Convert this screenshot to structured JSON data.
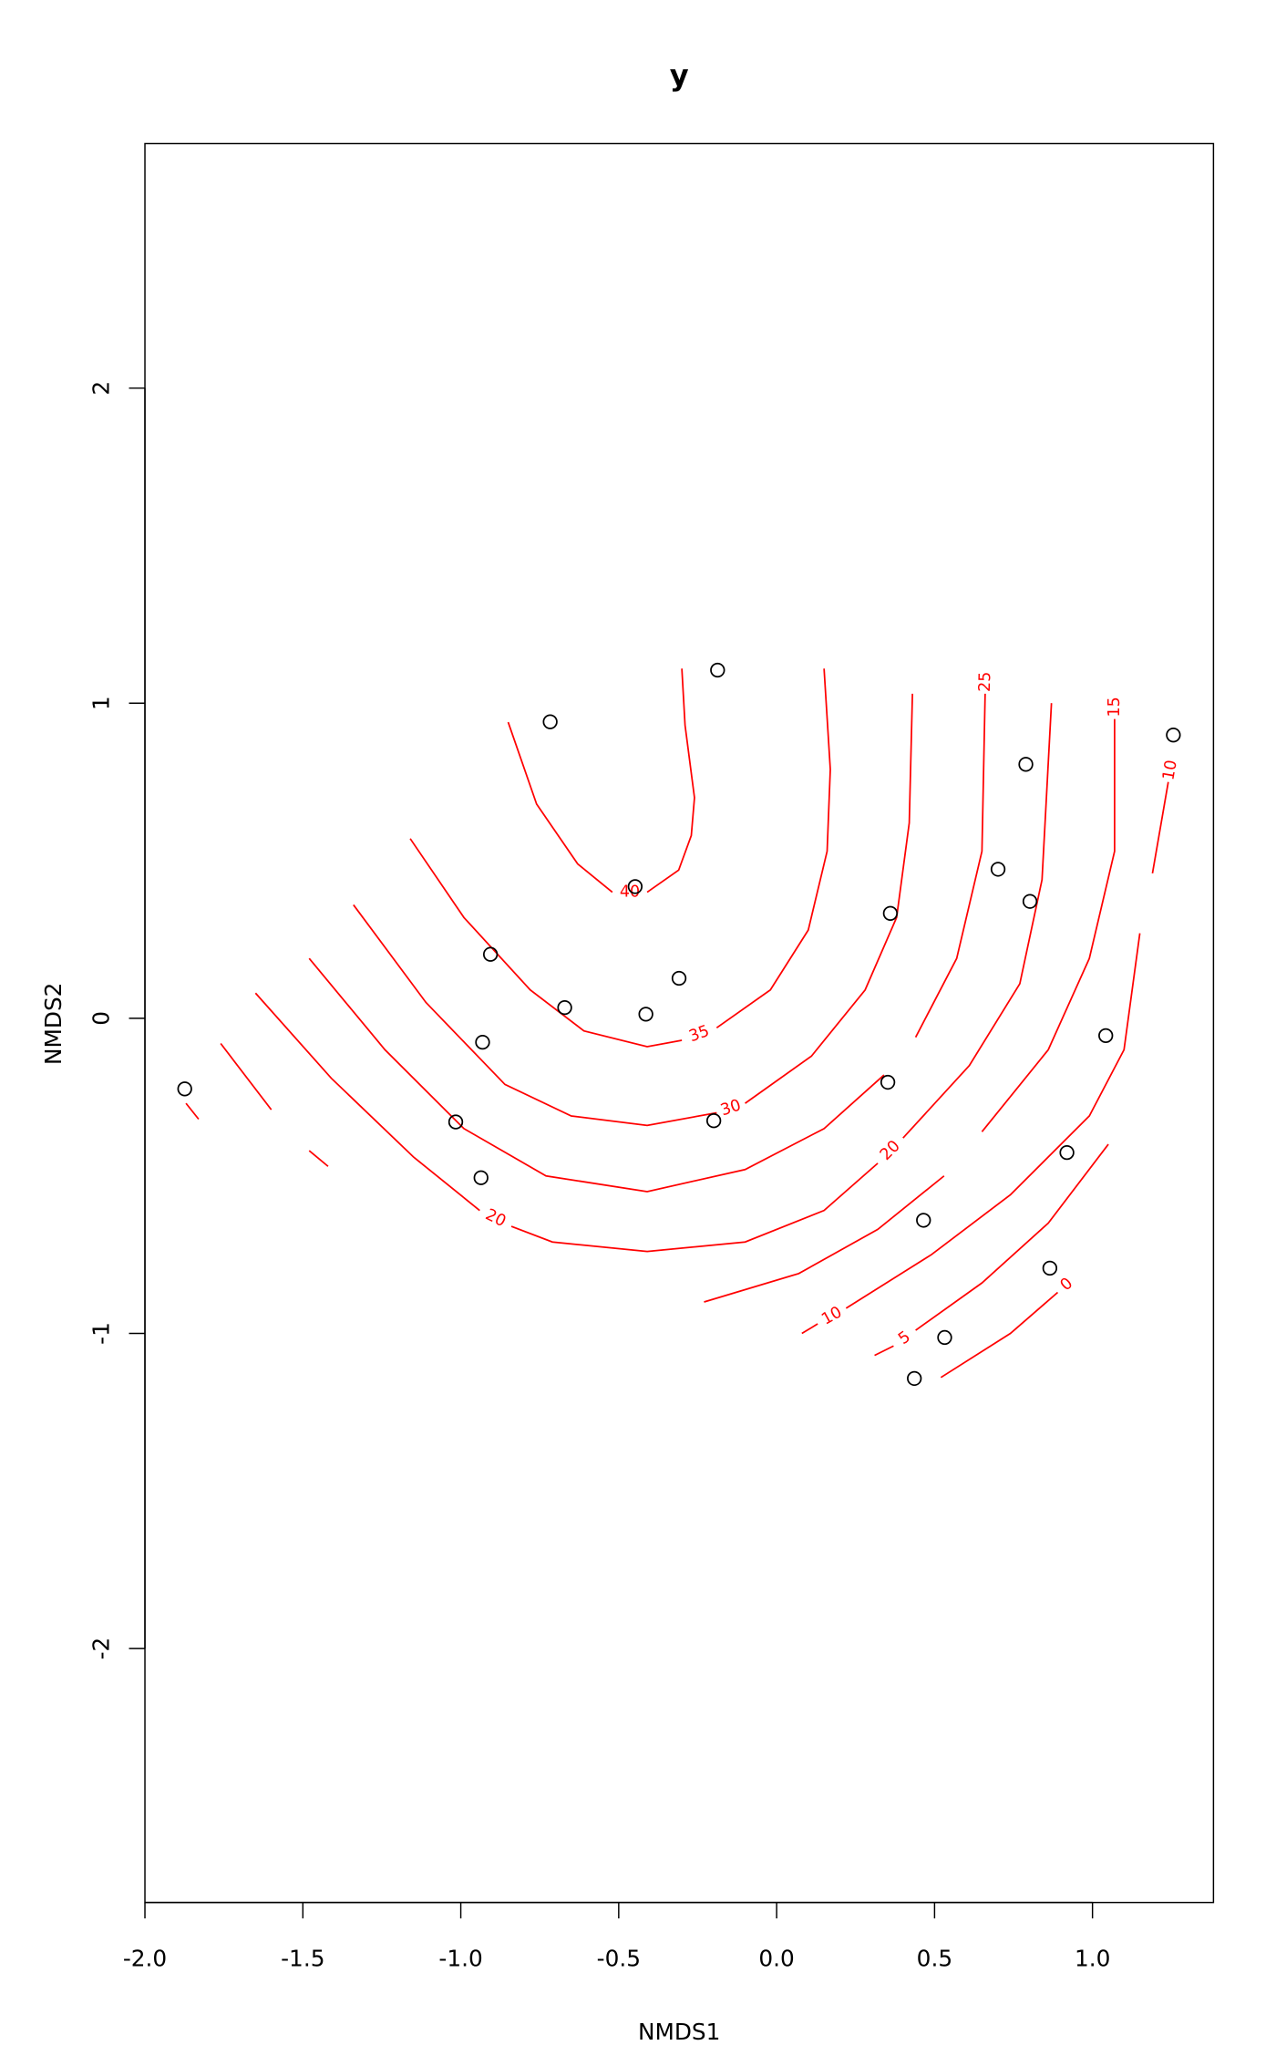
{
  "chart_data": {
    "type": "scatter",
    "title": "y",
    "xlabel": "NMDS1",
    "ylabel": "NMDS2",
    "x": [
      -1.874,
      -0.717,
      -0.187,
      -0.448,
      -0.906,
      -0.671,
      -0.414,
      -0.309,
      -0.931,
      -1.016,
      -0.936,
      -0.199,
      0.36,
      0.352,
      0.701,
      0.789,
      0.802,
      1.042,
      1.256,
      0.919,
      0.465,
      0.865,
      0.532,
      0.436
    ],
    "y": [
      -0.224,
      0.941,
      1.105,
      0.418,
      0.203,
      0.034,
      0.013,
      0.127,
      -0.076,
      -0.329,
      -0.506,
      -0.325,
      0.333,
      -0.203,
      0.473,
      0.806,
      0.371,
      -0.055,
      0.899,
      -0.426,
      -0.641,
      -0.793,
      -1.013,
      -1.143
    ],
    "point_color": "#000000",
    "contours": [
      {
        "level": 40,
        "color": "#ff0000",
        "x": [
          -0.85,
          -0.76,
          -0.63,
          -0.52,
          null,
          -0.41,
          -0.31,
          -0.27,
          -0.26,
          -0.29,
          -0.3
        ],
        "y": [
          0.94,
          0.68,
          0.49,
          0.4,
          null,
          0.4,
          0.47,
          0.58,
          0.7,
          0.93,
          1.11
        ]
      },
      {
        "level": 35,
        "color": "#ff0000",
        "x": [
          -1.16,
          -0.99,
          -0.78,
          -0.61,
          -0.41,
          -0.3,
          null,
          -0.19,
          -0.02,
          0.1,
          0.16,
          0.17,
          0.15
        ],
        "y": [
          0.57,
          0.32,
          0.09,
          -0.04,
          -0.09,
          -0.07,
          null,
          -0.03,
          0.09,
          0.28,
          0.53,
          0.79,
          1.11
        ]
      },
      {
        "level": 30,
        "color": "#ff0000",
        "x": [
          -1.34,
          -1.11,
          -0.86,
          -0.65,
          -0.41,
          -0.19,
          null,
          -0.1,
          0.11,
          0.28,
          0.38,
          0.42,
          0.43
        ],
        "y": [
          0.36,
          0.05,
          -0.21,
          -0.31,
          -0.34,
          -0.3,
          null,
          -0.27,
          -0.12,
          0.09,
          0.32,
          0.62,
          1.03
        ]
      },
      {
        "level": 25,
        "color": "#ff0000",
        "x": [
          -1.48,
          -1.24,
          -0.99,
          -0.73,
          -0.41,
          -0.1,
          0.15,
          0.34,
          null,
          0.44,
          0.57,
          0.65,
          0.66
        ],
        "y": [
          0.19,
          -0.1,
          -0.35,
          -0.5,
          -0.55,
          -0.48,
          -0.35,
          -0.18,
          null,
          -0.06,
          0.19,
          0.53,
          1.03
        ]
      },
      {
        "level": 20,
        "color": "#ff0000",
        "x": [
          -1.65,
          -1.41,
          -1.15,
          -0.94,
          null,
          -0.84,
          -0.71,
          -0.41,
          -0.1,
          0.15,
          0.32,
          null,
          0.4,
          0.61,
          0.77,
          0.84,
          0.87
        ],
        "y": [
          0.08,
          -0.19,
          -0.44,
          -0.61,
          null,
          -0.66,
          -0.71,
          -0.74,
          -0.71,
          -0.61,
          -0.46,
          null,
          -0.38,
          -0.15,
          0.11,
          0.44,
          1.0
        ]
      },
      {
        "level": 15,
        "color": "#ff0000",
        "x": [
          -1.76,
          -1.6,
          null,
          -1.48,
          -1.42,
          null,
          -0.23,
          0.07,
          0.32,
          0.53,
          null,
          0.65,
          0.86,
          0.99,
          1.07,
          1.07
        ],
        "y": [
          -0.08,
          -0.29,
          null,
          -0.42,
          -0.47,
          null,
          -0.9,
          -0.81,
          -0.67,
          -0.5,
          null,
          -0.36,
          -0.1,
          0.19,
          0.53,
          0.95
        ]
      },
      {
        "level": 10,
        "color": "#ff0000",
        "x": [
          -1.87,
          -1.83,
          null,
          0.08,
          0.13,
          null,
          0.22,
          0.49,
          0.74,
          0.99,
          1.1,
          1.15,
          null,
          1.19,
          1.24
        ],
        "y": [
          -0.27,
          -0.32,
          null,
          -1.0,
          -0.97,
          null,
          -0.92,
          -0.75,
          -0.56,
          -0.31,
          -0.1,
          0.27,
          null,
          0.46,
          0.75
        ]
      },
      {
        "level": 5,
        "color": "#ff0000",
        "x": [
          0.31,
          0.37,
          null,
          0.44,
          0.65,
          0.86,
          1.05
        ],
        "y": [
          -1.07,
          -1.04,
          null,
          -0.99,
          -0.84,
          -0.65,
          -0.4
        ]
      },
      {
        "level": 0,
        "color": "#ff0000",
        "x": [
          0.52,
          0.74,
          0.89
        ],
        "y": [
          -1.14,
          -1.0,
          -0.87
        ]
      }
    ],
    "xlim": [
      -2.0,
      1.383
    ],
    "ylim": [
      -2.806,
      2.776
    ],
    "xticks": [
      {
        "value": -2.0,
        "label": "-2.0"
      },
      -1.5,
      {
        "value": -1.0,
        "label": "-1.0"
      },
      -0.5,
      {
        "value": 0.0,
        "label": "0.0"
      },
      0.5,
      {
        "value": 1.0,
        "label": "1.0"
      }
    ],
    "yticks": [
      -2,
      -1,
      0,
      1,
      2
    ]
  }
}
